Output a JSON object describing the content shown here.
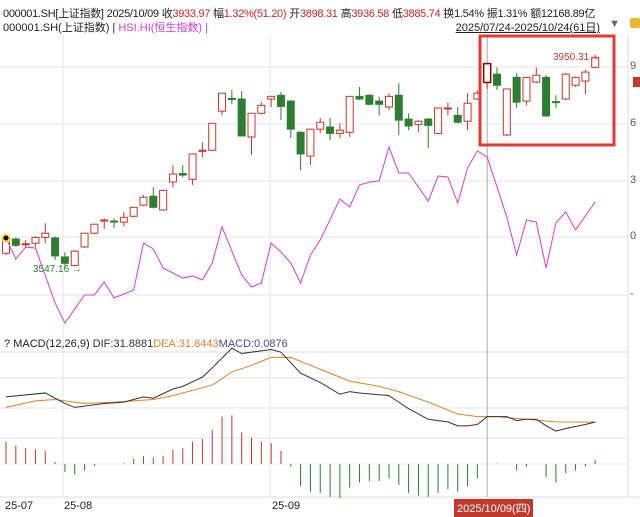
{
  "header": {
    "symbol": "000001.SH[上证指数]",
    "date": "2025/10/09",
    "close_label": "收",
    "close": "3933.97",
    "change_label": "幅",
    "change": "1.32%(51.20)",
    "open_label": "开",
    "open": "3898.31",
    "high_label": "高",
    "high": "3936.58",
    "low_label": "低",
    "low": "3885.74",
    "turnover_label": "换",
    "turnover": "1.54%",
    "amplitude_label": "振",
    "amplitude": "1.31%",
    "amount_label": "额",
    "amount": "12168.89亿"
  },
  "legend": {
    "main": "000001.SH(上证指数) |",
    "compare": "HSI.HI(恒生指数) |",
    "range": "2025/07/24-2025/10/24(61日)",
    "dropdown_icon": "triangle-down",
    "lock_icon": "lock"
  },
  "macd_header": {
    "help": "?",
    "name": "MACD(12,26,9)",
    "dif": "DIF:31.8881",
    "dea": "DEA:31.8443",
    "macd": "MACD:0.0876"
  },
  "x_axis": {
    "ticks": [
      "25-07",
      "25-08",
      "25-09"
    ],
    "crosshair_date": "2025/10/09(四)"
  },
  "right_axis_ticks": [
    "9",
    "6",
    "3",
    "0",
    "-"
  ],
  "colors": {
    "up": "#c0392b",
    "down": "#2e7d32",
    "hsi": "#d040d0",
    "dif": "#333333",
    "dea": "#e08030",
    "highlight_box": "#e53935"
  },
  "chart_data": [
    {
      "type": "candlestick",
      "series_name": "000001.SH(上证指数)",
      "ohlc": [
        [
          3575,
          3607,
          3572,
          3605
        ],
        [
          3602,
          3605,
          3587,
          3590
        ],
        [
          3592,
          3600,
          3585,
          3593
        ],
        [
          3594,
          3607,
          3587,
          3605
        ],
        [
          3605,
          3632,
          3594,
          3613
        ],
        [
          3604,
          3607,
          3562,
          3570
        ],
        [
          3568,
          3577,
          3547.16,
          3556
        ],
        [
          3552,
          3581,
          3550,
          3579
        ],
        [
          3587,
          3613,
          3585,
          3613
        ],
        [
          3613,
          3630,
          3611,
          3630
        ],
        [
          3636,
          3641,
          3621,
          3638
        ],
        [
          3636,
          3641,
          3623,
          3634
        ],
        [
          3634,
          3653,
          3626,
          3643
        ],
        [
          3645,
          3662,
          3643,
          3662
        ],
        [
          3666,
          3685,
          3664,
          3681
        ],
        [
          3683,
          3700,
          3660,
          3662
        ],
        [
          3657,
          3694,
          3655,
          3694
        ],
        [
          3710,
          3742,
          3700,
          3725
        ],
        [
          3726,
          3742,
          3719,
          3723
        ],
        [
          3715,
          3763,
          3704,
          3763
        ],
        [
          3768,
          3785,
          3757,
          3770
        ],
        [
          3770,
          3821,
          3768,
          3821
        ],
        [
          3844,
          3878,
          3836,
          3878
        ],
        [
          3868,
          3884,
          3857,
          3866
        ],
        [
          3867,
          3882,
          3797,
          3797
        ],
        [
          3795,
          3840,
          3761,
          3840
        ],
        [
          3840,
          3861,
          3838,
          3855
        ],
        [
          3867,
          3872,
          3852,
          3872
        ],
        [
          3874,
          3880,
          3827,
          3853
        ],
        [
          3863,
          3865,
          3793,
          3810
        ],
        [
          3804,
          3806,
          3732,
          3763
        ],
        [
          3759,
          3810,
          3742,
          3810
        ],
        [
          3810,
          3831,
          3802,
          3823
        ],
        [
          3814,
          3831,
          3789,
          3802
        ],
        [
          3802,
          3821,
          3793,
          3808
        ],
        [
          3804,
          3872,
          3795,
          3872
        ],
        [
          3872,
          3890,
          3865,
          3867
        ],
        [
          3874,
          3876,
          3855,
          3857
        ],
        [
          3863,
          3871,
          3836,
          3857
        ],
        [
          3852,
          3878,
          3846,
          3872
        ],
        [
          3874,
          3897,
          3799,
          3827
        ],
        [
          3829,
          3840,
          3808,
          3816
        ],
        [
          3819,
          3827,
          3804,
          3825
        ],
        [
          3829,
          3831,
          3774,
          3817
        ],
        [
          3802,
          3850,
          3800,
          3850
        ],
        [
          3849,
          3861,
          3836,
          3850
        ],
        [
          3836,
          3852,
          3821,
          3823
        ],
        [
          3825,
          3878,
          3808,
          3859
        ],
        [
          3867,
          3884,
          3865,
          3878
        ],
        [
          3898.31,
          3936.58,
          3885.74,
          3933.97
        ],
        [
          3914,
          3927,
          3884,
          3893
        ],
        [
          3799,
          3886,
          3797,
          3886
        ],
        [
          3908,
          3916,
          3850,
          3861
        ],
        [
          3863,
          3908,
          3855,
          3908
        ],
        [
          3899,
          3927,
          3897,
          3912
        ],
        [
          3908,
          3912,
          3833,
          3835
        ],
        [
          3862,
          3874,
          3850,
          3861
        ],
        [
          3867,
          3916,
          3865,
          3914
        ],
        [
          3893,
          3910,
          3890,
          3908
        ],
        [
          3901,
          3922,
          3876,
          3918
        ],
        [
          3927,
          3950.31,
          3925,
          3946
        ]
      ],
      "low_marker": "3547.16 →",
      "high_marker": "3950.31→",
      "highlighted_index": 49
    },
    {
      "type": "line",
      "series_name": "HSI.HI(恒生指数)",
      "axis": "right, percent",
      "points": [
        [
          0,
          -0.05
        ],
        [
          1,
          -1.16
        ],
        [
          2,
          -0.53
        ],
        [
          3,
          -0.58
        ],
        [
          5,
          -3.47
        ],
        [
          6,
          -4.53
        ],
        [
          8,
          -3.05
        ],
        [
          9,
          -3.05
        ],
        [
          10,
          -2.37
        ],
        [
          11,
          -3.21
        ],
        [
          13,
          -2.79
        ],
        [
          14,
          -0.32
        ],
        [
          15,
          -0.63
        ],
        [
          16,
          -1.63
        ],
        [
          18,
          -2.16
        ],
        [
          19,
          -2.05
        ],
        [
          20,
          -2.26
        ],
        [
          21,
          -1.37
        ],
        [
          22,
          0.53
        ],
        [
          24,
          -2.0
        ],
        [
          25,
          -2.63
        ],
        [
          26,
          -2.42
        ],
        [
          27,
          -0.32
        ],
        [
          28,
          -0.79
        ],
        [
          29,
          -1.37
        ],
        [
          30,
          -2.42
        ],
        [
          31,
          -0.95
        ],
        [
          32,
          -0.16
        ],
        [
          34,
          2.0
        ],
        [
          35,
          1.58
        ],
        [
          36,
          2.74
        ],
        [
          37,
          2.89
        ],
        [
          38,
          2.95
        ],
        [
          39,
          4.74
        ],
        [
          40,
          3.37
        ],
        [
          41,
          3.37
        ],
        [
          43,
          1.89
        ],
        [
          44,
          3.21
        ],
        [
          45,
          3.16
        ],
        [
          46,
          1.79
        ],
        [
          47,
          3.63
        ],
        [
          48,
          4.53
        ],
        [
          49,
          4.21
        ],
        [
          51,
          1.05
        ],
        [
          52,
          -0.95
        ],
        [
          53,
          0.89
        ],
        [
          54,
          0.79
        ],
        [
          55,
          -1.63
        ],
        [
          56,
          0.74
        ],
        [
          57,
          1.32
        ],
        [
          58,
          0.37
        ],
        [
          60,
          1.84
        ]
      ]
    },
    {
      "type": "macd",
      "dif": [
        [
          0,
          51
        ],
        [
          4,
          54
        ],
        [
          6,
          46
        ],
        [
          7,
          43
        ],
        [
          10,
          46
        ],
        [
          12,
          47
        ],
        [
          14,
          51
        ],
        [
          15,
          50
        ],
        [
          17,
          57
        ],
        [
          18,
          59
        ],
        [
          20,
          66
        ],
        [
          21,
          73
        ],
        [
          23,
          88
        ],
        [
          24,
          84
        ],
        [
          27,
          87
        ],
        [
          28,
          85
        ],
        [
          30,
          69
        ],
        [
          32,
          62
        ],
        [
          34,
          53
        ],
        [
          35,
          55
        ],
        [
          36,
          54
        ],
        [
          39,
          52
        ],
        [
          41,
          42
        ],
        [
          43,
          34
        ],
        [
          45,
          32
        ],
        [
          46,
          29
        ],
        [
          47,
          29
        ],
        [
          48,
          30
        ],
        [
          49,
          36
        ],
        [
          51,
          36
        ],
        [
          52,
          33
        ],
        [
          53,
          34
        ],
        [
          54,
          34
        ],
        [
          55,
          29
        ],
        [
          56,
          25
        ],
        [
          57,
          27
        ],
        [
          59,
          30
        ],
        [
          60,
          31.89
        ]
      ],
      "dea": [
        [
          0,
          43
        ],
        [
          3,
          48
        ],
        [
          5,
          49
        ],
        [
          8,
          46
        ],
        [
          11,
          47
        ],
        [
          15,
          49
        ],
        [
          17,
          52
        ],
        [
          21,
          60
        ],
        [
          23,
          70
        ],
        [
          25,
          75
        ],
        [
          27,
          81
        ],
        [
          29,
          81
        ],
        [
          31,
          75
        ],
        [
          32,
          72
        ],
        [
          35,
          63
        ],
        [
          38,
          59
        ],
        [
          40,
          55
        ],
        [
          43,
          47
        ],
        [
          46,
          38
        ],
        [
          48,
          36
        ],
        [
          50,
          36
        ],
        [
          53,
          34
        ],
        [
          56,
          32
        ],
        [
          60,
          31.84
        ]
      ],
      "histogram": [
        17,
        14,
        12,
        11,
        10,
        1.5,
        -6,
        -8,
        -5,
        -1.5,
        0,
        0,
        0.5,
        4,
        6,
        5,
        6,
        11,
        12,
        17,
        19,
        26,
        36,
        37,
        24,
        20,
        17,
        16,
        10,
        -2,
        -17,
        -21,
        -22,
        -25,
        -26,
        -18,
        -14,
        -13,
        -13,
        -11,
        -16,
        -22,
        -24,
        -25,
        -22,
        -19,
        -21,
        -17,
        -11,
        0,
        0.3,
        0,
        -5,
        -2,
        0,
        -10,
        -14,
        -7,
        -5,
        -2,
        3
      ]
    }
  ]
}
